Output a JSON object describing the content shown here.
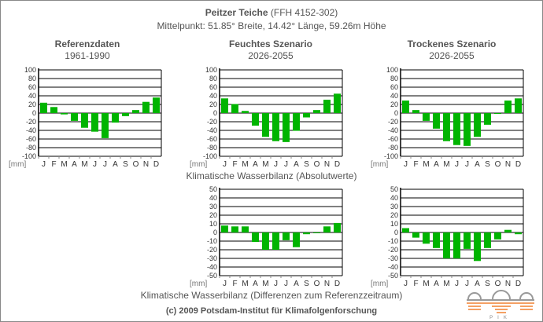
{
  "header": {
    "title": "Peitzer Teiche",
    "code": " (FFH 4152-302)",
    "subtitle": "Mittelpunkt: 51.85° Breite, 14.42° Länge, 59.26m Höhe"
  },
  "captions": {
    "absolute": "Klimatische Wasserbilanz (Absolutwerte)",
    "difference": "Klimatische Wasserbilanz (Differenzen zum Referenzzeitraum)"
  },
  "footer": {
    "copyright": "(c) 2009 Potsdam-Institut für Klimafolgenforschung",
    "logo_text": "PIK"
  },
  "colors": {
    "bar": "#00b400",
    "text": "#555555"
  },
  "chart_data": [
    {
      "id": "ref",
      "type": "bar",
      "title": "Referenzdaten",
      "subtitle": "1961-1990",
      "unit": "[mm]",
      "categories": [
        "J",
        "F",
        "M",
        "A",
        "M",
        "J",
        "J",
        "A",
        "S",
        "O",
        "N",
        "D"
      ],
      "values": [
        24,
        14,
        -3,
        -18,
        -34,
        -43,
        -58,
        -22,
        -7,
        7,
        26,
        36
      ],
      "ylim": [
        -100,
        100
      ],
      "yticks": [
        100,
        80,
        60,
        40,
        20,
        0,
        -20,
        -40,
        -60,
        -80,
        -100
      ]
    },
    {
      "id": "wet",
      "type": "bar",
      "title": "Feuchtes Szenario",
      "subtitle": "2026-2055",
      "unit": "[mm]",
      "categories": [
        "J",
        "F",
        "M",
        "A",
        "M",
        "J",
        "J",
        "A",
        "S",
        "O",
        "N",
        "D"
      ],
      "values": [
        34,
        21,
        5,
        -29,
        -55,
        -65,
        -67,
        -41,
        -10,
        7,
        31,
        45
      ],
      "ylim": [
        -100,
        100
      ],
      "yticks": [
        100,
        80,
        60,
        40,
        20,
        0,
        -20,
        -40,
        -60,
        -80,
        -100
      ]
    },
    {
      "id": "dry",
      "type": "bar",
      "title": "Trockenes Szenario",
      "subtitle": "2026-2055",
      "unit": "[mm]",
      "categories": [
        "J",
        "F",
        "M",
        "A",
        "M",
        "J",
        "J",
        "A",
        "S",
        "O",
        "N",
        "D"
      ],
      "values": [
        29,
        7,
        -18,
        -36,
        -65,
        -74,
        -76,
        -55,
        -27,
        -1,
        29,
        34
      ],
      "ylim": [
        -100,
        100
      ],
      "yticks": [
        100,
        80,
        60,
        40,
        20,
        0,
        -20,
        -40,
        -60,
        -80,
        -100
      ]
    },
    {
      "id": "wet-diff",
      "type": "bar",
      "title": "",
      "subtitle": "",
      "unit": "[mm]",
      "categories": [
        "J",
        "F",
        "M",
        "A",
        "M",
        "J",
        "J",
        "A",
        "S",
        "O",
        "N",
        "D"
      ],
      "values": [
        8,
        7,
        7,
        -11,
        -20,
        -20,
        -9,
        -17,
        -2,
        0,
        7,
        11
      ],
      "ylim": [
        -50,
        50
      ],
      "yticks": [
        50,
        40,
        30,
        20,
        10,
        0,
        -10,
        -20,
        -30,
        -40,
        -50
      ]
    },
    {
      "id": "dry-diff",
      "type": "bar",
      "title": "",
      "subtitle": "",
      "unit": "[mm]",
      "categories": [
        "J",
        "F",
        "M",
        "A",
        "M",
        "J",
        "J",
        "A",
        "S",
        "O",
        "N",
        "D"
      ],
      "values": [
        5,
        -6,
        -13,
        -18,
        -30,
        -30,
        -19,
        -33,
        -18,
        -8,
        3,
        -2
      ],
      "ylim": [
        -50,
        50
      ],
      "yticks": [
        50,
        40,
        30,
        20,
        10,
        0,
        -10,
        -20,
        -30,
        -40,
        -50
      ]
    }
  ]
}
